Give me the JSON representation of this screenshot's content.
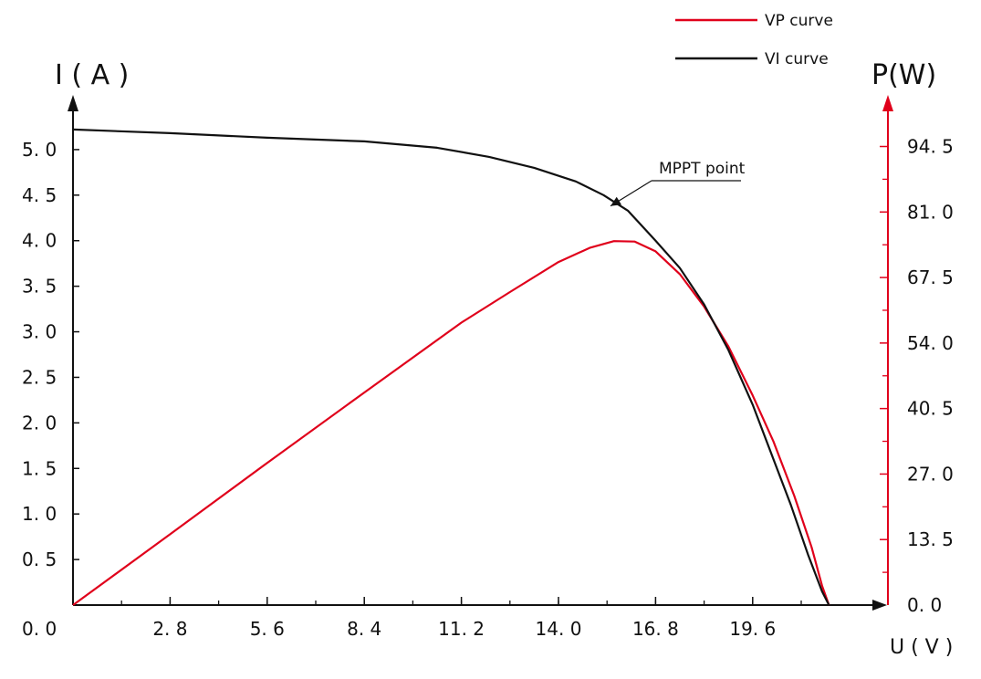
{
  "chart_data": {
    "type": "line",
    "x_axis": {
      "label": "U ( V )",
      "range": [
        0,
        23.5
      ],
      "ticks": [
        2.8,
        5.6,
        8.4,
        11.2,
        14.0,
        16.8,
        19.6
      ],
      "tick_labels": [
        "2. 8",
        "5. 6",
        "8. 4",
        "11. 2",
        "14. 0",
        "16. 8",
        "19. 6"
      ],
      "origin_label": "0. 0"
    },
    "y_left": {
      "label": "I ( A )",
      "range": [
        0,
        5.5
      ],
      "ticks": [
        0.5,
        1.0,
        1.5,
        2.0,
        2.5,
        3.0,
        3.5,
        4.0,
        4.5,
        5.0
      ],
      "tick_labels": [
        "0. 5",
        "1. 0",
        "1. 5",
        "2. 0",
        "2. 5",
        "3. 0",
        "3. 5",
        "4. 0",
        "4. 5",
        "5. 0"
      ]
    },
    "y_right": {
      "label": "P(W)",
      "range": [
        0,
        104
      ],
      "ticks": [
        0,
        13.5,
        27,
        40.5,
        54,
        67.5,
        81,
        94.5
      ],
      "tick_labels": [
        "0. 0",
        "13. 5",
        "27. 0",
        "40. 5",
        "54. 0",
        "67. 5",
        "81. 0",
        "94. 5"
      ]
    },
    "series": [
      {
        "name": "VP curve",
        "axis": "right",
        "color": "#e0001b",
        "points": [
          [
            0,
            0
          ],
          [
            2.8,
            14.6
          ],
          [
            5.6,
            29.3
          ],
          [
            8.4,
            43.8
          ],
          [
            11.2,
            58.2
          ],
          [
            12.6,
            64.5
          ],
          [
            14.0,
            70.7
          ],
          [
            14.9,
            73.6
          ],
          [
            15.6,
            75.0
          ],
          [
            16.2,
            74.9
          ],
          [
            16.8,
            72.9
          ],
          [
            17.5,
            68.2
          ],
          [
            18.2,
            61.5
          ],
          [
            18.9,
            53.3
          ],
          [
            19.6,
            43.2
          ],
          [
            20.2,
            33.7
          ],
          [
            20.8,
            22.5
          ],
          [
            21.3,
            11.9
          ],
          [
            21.6,
            4.0
          ],
          [
            21.8,
            0
          ]
        ]
      },
      {
        "name": "VI curve",
        "axis": "left",
        "color": "#111111",
        "points": [
          [
            0,
            5.22
          ],
          [
            2.8,
            5.18
          ],
          [
            5.6,
            5.13
          ],
          [
            8.4,
            5.09
          ],
          [
            10.5,
            5.02
          ],
          [
            12.0,
            4.92
          ],
          [
            13.3,
            4.8
          ],
          [
            14.5,
            4.65
          ],
          [
            15.3,
            4.5
          ],
          [
            16.0,
            4.33
          ],
          [
            16.8,
            4.0
          ],
          [
            17.5,
            3.7
          ],
          [
            18.2,
            3.3
          ],
          [
            18.9,
            2.8
          ],
          [
            19.6,
            2.2
          ],
          [
            20.2,
            1.6
          ],
          [
            20.7,
            1.1
          ],
          [
            21.2,
            0.55
          ],
          [
            21.6,
            0.15
          ],
          [
            21.8,
            0
          ]
        ]
      }
    ],
    "annotations": [
      {
        "text": "MPPT point",
        "point": [
          15.5,
          4.38
        ]
      }
    ],
    "legend": {
      "position": "top-right"
    },
    "grid": false
  }
}
